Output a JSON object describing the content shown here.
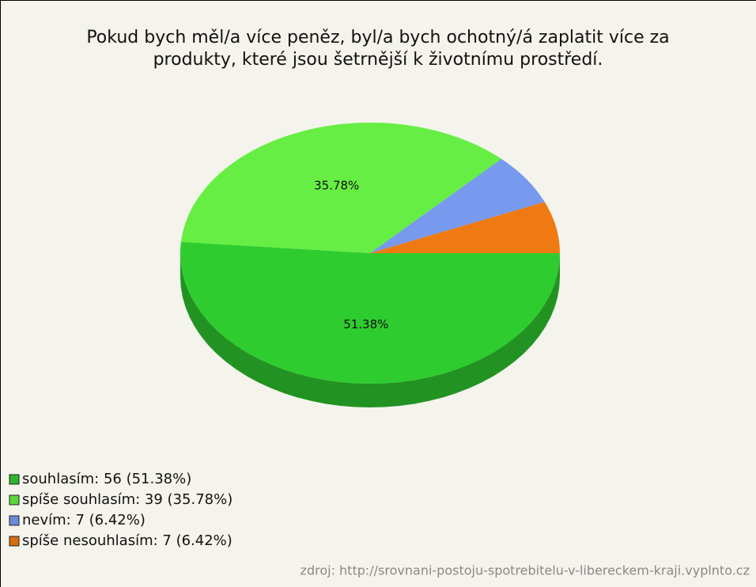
{
  "chart_data": {
    "type": "pie",
    "title": [
      "Pokud bych měl/a více peněz, byl/a bych ochotný/á zaplatit více za",
      "produkty, které jsou šetrnější k životnímu prostředí."
    ],
    "values": [
      51.38,
      35.78,
      6.42,
      6.42
    ],
    "value_labels": [
      "51.38%",
      "35.78%",
      null,
      null
    ],
    "colors": [
      "#2fcc2f",
      "#66ee44",
      "#7799ee",
      "#ee7a11"
    ],
    "legend": [
      "souhlasím: 56 (51.38%)",
      "spíše souhlasím: 39 (35.78%)",
      "nevím: 7 (6.42%)",
      "spíše nesouhlasím: 7 (6.42%)"
    ],
    "source": "zdroj: http://srovnani-postoju-spotrebitelu-v-libereckem-kraji.vyplnto.cz"
  }
}
